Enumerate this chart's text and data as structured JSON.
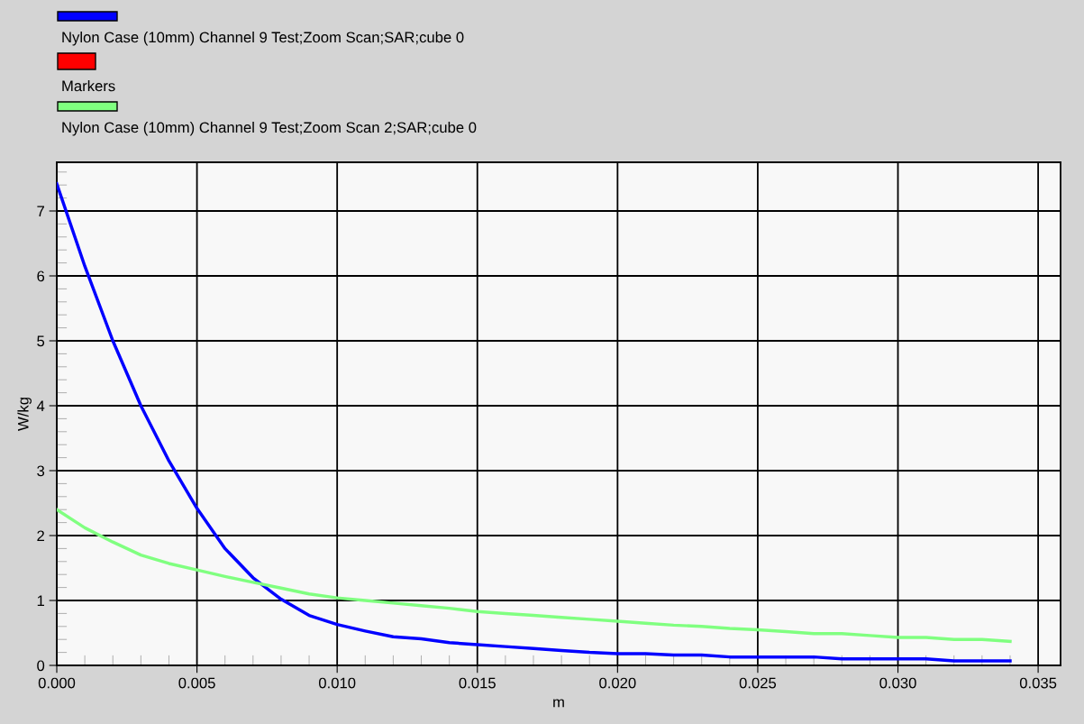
{
  "chart_data": {
    "type": "line",
    "xlabel": "m",
    "ylabel": "W/kg",
    "x": [
      0,
      0.001,
      0.002,
      0.003,
      0.004,
      0.005,
      0.006,
      0.007,
      0.008,
      0.009,
      0.01,
      0.011,
      0.012,
      0.013,
      0.014,
      0.015,
      0.016,
      0.017,
      0.018,
      0.019,
      0.02,
      0.021,
      0.022,
      0.023,
      0.024,
      0.025,
      0.026,
      0.027,
      0.028,
      0.029,
      0.03,
      0.031,
      0.032,
      0.033,
      0.034
    ],
    "series": [
      {
        "name": "Nylon Case (10mm) Channel 9 Test;Zoom Scan;SAR;cube 0",
        "color": "#0000ff",
        "values": [
          7.42,
          6.15,
          5.0,
          4.0,
          3.15,
          2.42,
          1.8,
          1.35,
          1.02,
          0.77,
          0.63,
          0.53,
          0.44,
          0.41,
          0.35,
          0.32,
          0.29,
          0.26,
          0.23,
          0.2,
          0.18,
          0.18,
          0.16,
          0.16,
          0.13,
          0.13,
          0.13,
          0.13,
          0.1,
          0.1,
          0.1,
          0.1,
          0.07,
          0.07,
          0.07
        ]
      },
      {
        "name": "Markers",
        "color": "#ff0000",
        "type": "scatter",
        "values": [
          null,
          null,
          null,
          null,
          null,
          null,
          null,
          null,
          null,
          null,
          null,
          null,
          null,
          null,
          null,
          null,
          null,
          null,
          null,
          null,
          null,
          null,
          null,
          null,
          null,
          null,
          null,
          null,
          null,
          null,
          null,
          null,
          null,
          null,
          null
        ]
      },
      {
        "name": "Nylon Case (10mm) Channel 9 Test;Zoom Scan 2;SAR;cube 0",
        "color": "#80ff80",
        "values": [
          2.4,
          2.12,
          1.9,
          1.7,
          1.57,
          1.47,
          1.37,
          1.28,
          1.19,
          1.1,
          1.04,
          1.0,
          0.96,
          0.92,
          0.88,
          0.83,
          0.8,
          0.77,
          0.74,
          0.71,
          0.68,
          0.65,
          0.62,
          0.6,
          0.57,
          0.55,
          0.52,
          0.49,
          0.49,
          0.46,
          0.43,
          0.43,
          0.4,
          0.4,
          0.37
        ]
      }
    ],
    "xlim": [
      0,
      0.0358
    ],
    "ylim": [
      0,
      7.75
    ],
    "xticks": [
      {
        "value": 0,
        "label": "0.000"
      },
      {
        "value": 0.005,
        "label": "0.005"
      },
      {
        "value": 0.01,
        "label": "0.010"
      },
      {
        "value": 0.015,
        "label": "0.015"
      },
      {
        "value": 0.02,
        "label": "0.020"
      },
      {
        "value": 0.025,
        "label": "0.025"
      },
      {
        "value": 0.03,
        "label": "0.030"
      },
      {
        "value": 0.035,
        "label": "0.035"
      }
    ],
    "yticks": [
      0,
      1,
      2,
      3,
      4,
      5,
      6,
      7
    ],
    "grid": true,
    "legend": "top left",
    "marker": "none",
    "line_style": "solid"
  }
}
